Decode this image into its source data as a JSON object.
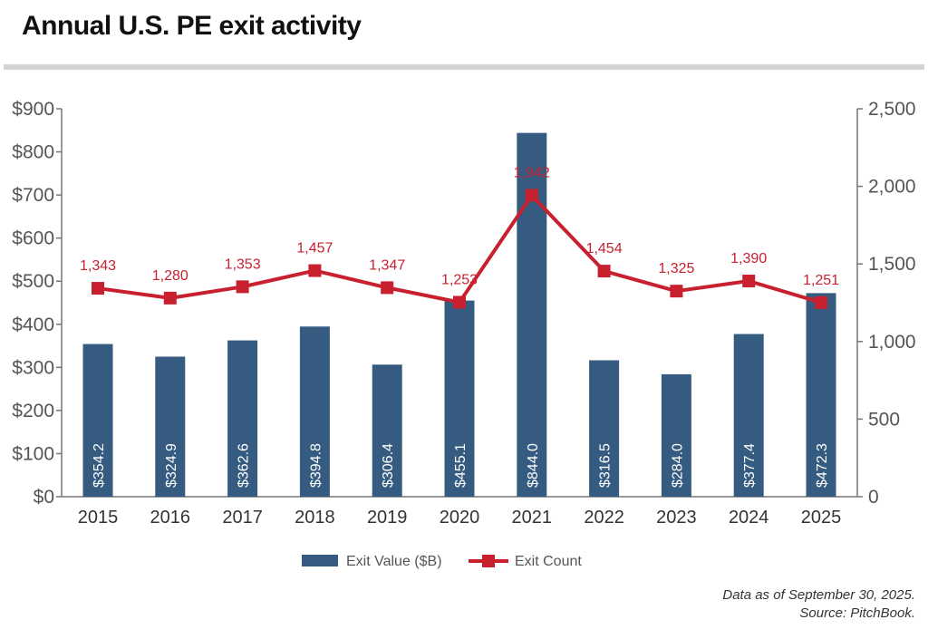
{
  "chart_data": {
    "type": "bar+line",
    "title": "Annual U.S. PE exit activity",
    "categories": [
      "2015",
      "2016",
      "2017",
      "2018",
      "2019",
      "2020",
      "2021",
      "2022",
      "2023",
      "2024",
      "2025"
    ],
    "series": [
      {
        "name": "Exit Value ($B)",
        "type": "bar",
        "axis": "left",
        "color": "#355C80",
        "values": [
          354.2,
          324.9,
          362.6,
          394.8,
          306.4,
          455.1,
          844.0,
          316.5,
          284.0,
          377.4,
          472.3
        ],
        "labels": [
          "$354.2",
          "$324.9",
          "$362.6",
          "$394.8",
          "$306.4",
          "$455.1",
          "$844.0",
          "$316.5",
          "$284.0",
          "$377.4",
          "$472.3"
        ]
      },
      {
        "name": "Exit Count",
        "type": "line",
        "axis": "right",
        "color": "#C8202F",
        "values": [
          1343,
          1280,
          1353,
          1457,
          1347,
          1253,
          1942,
          1454,
          1325,
          1390,
          1251
        ],
        "labels": [
          "1,343",
          "1,280",
          "1,353",
          "1,457",
          "1,347",
          "1,253",
          "1,942",
          "1,454",
          "1,325",
          "1,390",
          "1,251"
        ]
      }
    ],
    "left_axis": {
      "ylim": [
        0,
        900
      ],
      "ticks": [
        "$0",
        "$100",
        "$200",
        "$300",
        "$400",
        "$500",
        "$600",
        "$700",
        "$800",
        "$900"
      ]
    },
    "right_axis": {
      "ylim": [
        0,
        2500
      ],
      "ticks": [
        "0",
        "500",
        "1,000",
        "1,500",
        "2,000",
        "2,500"
      ]
    },
    "grid": false,
    "legend": "bottom"
  },
  "notes": {
    "line1": "Data as of September 30, 2025.",
    "line2": "Source: PitchBook."
  }
}
